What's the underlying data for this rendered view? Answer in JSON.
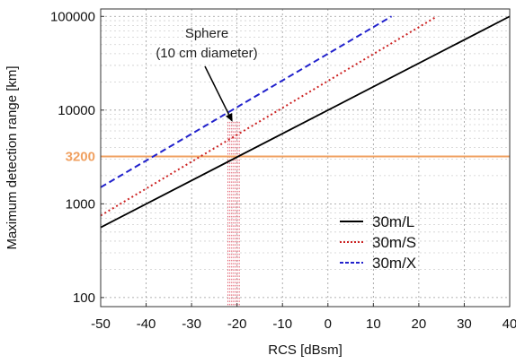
{
  "chart_data": {
    "type": "line",
    "xlabel": "RCS [dBsm]",
    "ylabel": "Maximum detection range [km]",
    "xlim": [
      -50,
      40
    ],
    "ylim": [
      80,
      120000
    ],
    "y_scale": "log",
    "grid": true,
    "x_ticks": [
      "-50",
      "-40",
      "-30",
      "-20",
      "-10",
      "0",
      "10",
      "20",
      "30",
      "40"
    ],
    "y_ticks": [
      "100",
      "1000",
      "10000",
      "100000"
    ],
    "series": [
      {
        "name": "30m/L",
        "color": "#000000",
        "style": "solid",
        "x": [
          -50,
          40
        ],
        "y": [
          560,
          100000
        ]
      },
      {
        "name": "30m/S",
        "color": "#cc2222",
        "style": "dotted",
        "x": [
          -50,
          24
        ],
        "y": [
          750,
          100000
        ]
      },
      {
        "name": "30m/X",
        "color": "#2222cc",
        "style": "dashed",
        "x": [
          -50,
          14
        ],
        "y": [
          1500,
          100000
        ]
      }
    ],
    "reference_line": {
      "label": "3200",
      "value": 3200,
      "color": "#f0a060"
    },
    "highlight_band": {
      "x": [
        -22,
        -19.5
      ],
      "color": "#e05a6a"
    },
    "annotation": {
      "lines": [
        "Sphere",
        "(10 cm diameter)"
      ],
      "target": {
        "x": -21,
        "y": 7500
      }
    },
    "legend": {
      "position": "bottom-right"
    }
  }
}
